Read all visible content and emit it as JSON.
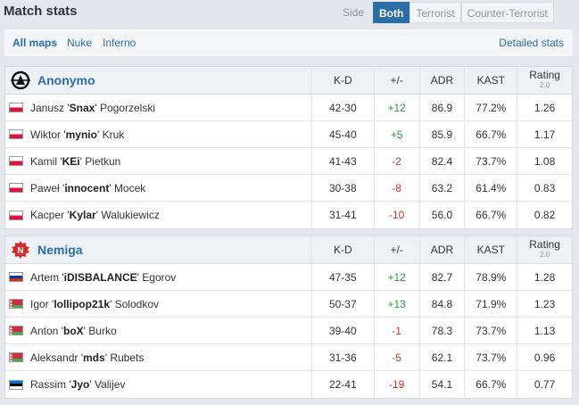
{
  "header": {
    "title": "Match stats",
    "side_label": "Side",
    "tabs": [
      "Both",
      "Terrorist",
      "Counter-Terrorist"
    ],
    "active_tab": "Both"
  },
  "maps": {
    "items": [
      "All maps",
      "Nuke",
      "Inferno"
    ],
    "active": "All maps",
    "detailed_link": "Detailed stats"
  },
  "colors": {
    "accent": "#2b6ea6",
    "positive": "#2a9d3a",
    "negative": "#d0342c"
  },
  "columns": {
    "kd": "K-D",
    "plus_minus": "+/-",
    "adr": "ADR",
    "kast": "KAST",
    "rating": "Rating",
    "rating_version": "2.0"
  },
  "teams": [
    {
      "name": "Anonymo",
      "logo_icon": "anonymo-logo-icon",
      "players": [
        {
          "first": "Janusz",
          "nick": "Snax",
          "last": "Pogorzelski",
          "flag": "poland-flag-icon",
          "kd": "42-30",
          "pm": "+12",
          "adr": "86.9",
          "kast": "77.2%",
          "rating": "1.26"
        },
        {
          "first": "Wiktor",
          "nick": "mynio",
          "last": "Kruk",
          "flag": "poland-flag-icon",
          "kd": "45-40",
          "pm": "+5",
          "adr": "85.9",
          "kast": "66.7%",
          "rating": "1.17"
        },
        {
          "first": "Kamil",
          "nick": "KEi",
          "last": "Pietkun",
          "flag": "poland-flag-icon",
          "kd": "41-43",
          "pm": "-2",
          "adr": "82.4",
          "kast": "73.7%",
          "rating": "1.08"
        },
        {
          "first": "Paweł",
          "nick": "innocent",
          "last": "Mocek",
          "flag": "poland-flag-icon",
          "kd": "30-38",
          "pm": "-8",
          "adr": "63.2",
          "kast": "61.4%",
          "rating": "0.83"
        },
        {
          "first": "Kacper",
          "nick": "Kylar",
          "last": "Walukiewicz",
          "flag": "poland-flag-icon",
          "kd": "31-41",
          "pm": "-10",
          "adr": "56.0",
          "kast": "66.7%",
          "rating": "0.82"
        }
      ]
    },
    {
      "name": "Nemiga",
      "logo_icon": "nemiga-logo-icon",
      "players": [
        {
          "first": "Artem",
          "nick": "iDISBALANCE",
          "last": "Egorov",
          "flag": "russia-flag-icon",
          "kd": "47-35",
          "pm": "+12",
          "adr": "82.7",
          "kast": "78.9%",
          "rating": "1.28"
        },
        {
          "first": "Igor",
          "nick": "lollipop21k",
          "last": "Solodkov",
          "flag": "belarus-flag-icon",
          "kd": "50-37",
          "pm": "+13",
          "adr": "84.8",
          "kast": "71.9%",
          "rating": "1.23"
        },
        {
          "first": "Anton",
          "nick": "boX",
          "last": "Burko",
          "flag": "belarus-flag-icon",
          "kd": "39-40",
          "pm": "-1",
          "adr": "78.3",
          "kast": "73.7%",
          "rating": "1.13"
        },
        {
          "first": "Aleksandr",
          "nick": "mds",
          "last": "Rubets",
          "flag": "belarus-flag-icon",
          "kd": "31-36",
          "pm": "-5",
          "adr": "62.1",
          "kast": "73.7%",
          "rating": "0.96"
        },
        {
          "first": "Rassim",
          "nick": "Jyo",
          "last": "Valijev",
          "flag": "estonia-flag-icon",
          "kd": "22-41",
          "pm": "-19",
          "adr": "54.1",
          "kast": "66.7%",
          "rating": "0.77"
        }
      ]
    }
  ]
}
